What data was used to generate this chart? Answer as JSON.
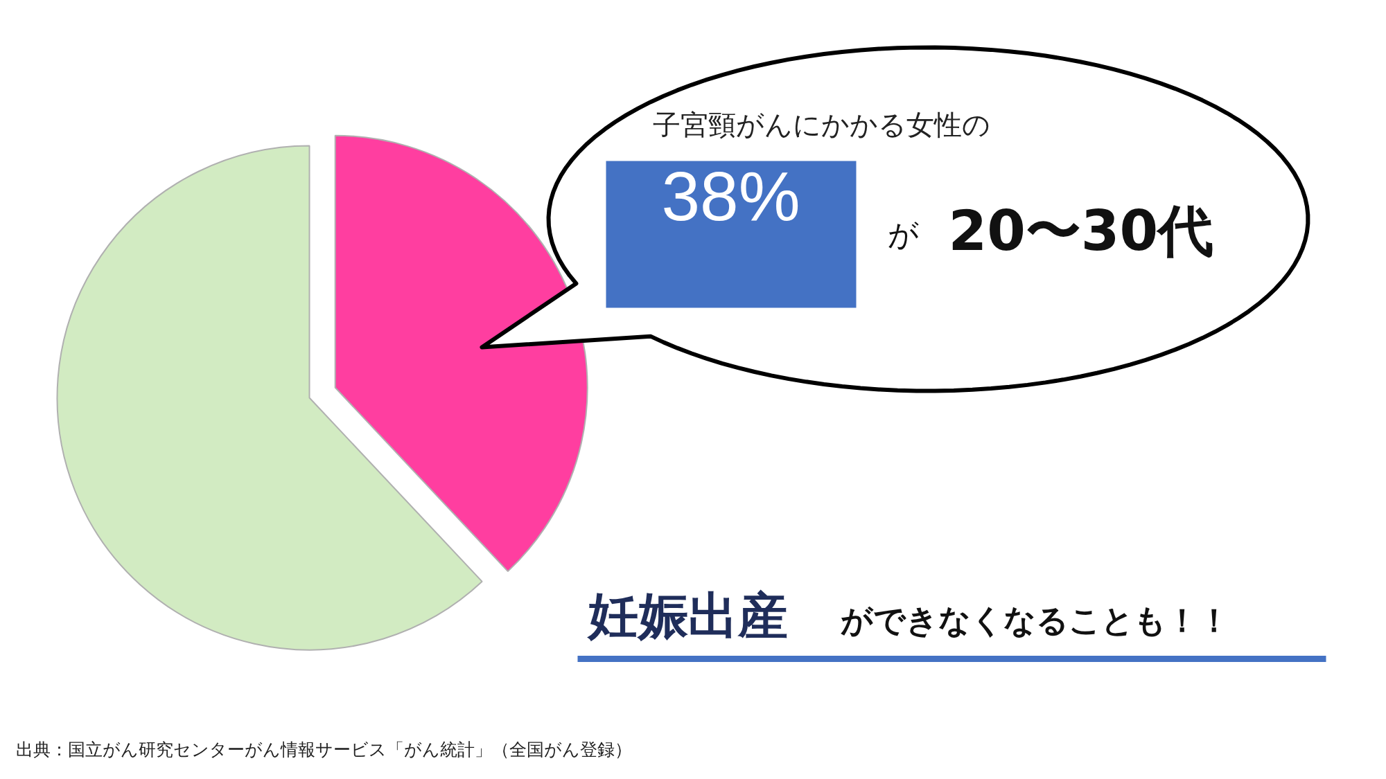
{
  "chart_data": {
    "type": "pie",
    "categories": [
      null,
      null
    ],
    "values": [
      38,
      62
    ],
    "colors": [
      "#ff3ea0",
      "#d2ebc2"
    ],
    "value_labels": [
      "38%",
      null
    ],
    "annotations": [
      "子宮頸がんにかかる女性の",
      "が",
      "20〜30代",
      "妊娠出産",
      "ができなくなることも！！",
      "出典：国立がん研究センターがん情報サービス「がん統計」（全国がん登録）"
    ]
  }
}
